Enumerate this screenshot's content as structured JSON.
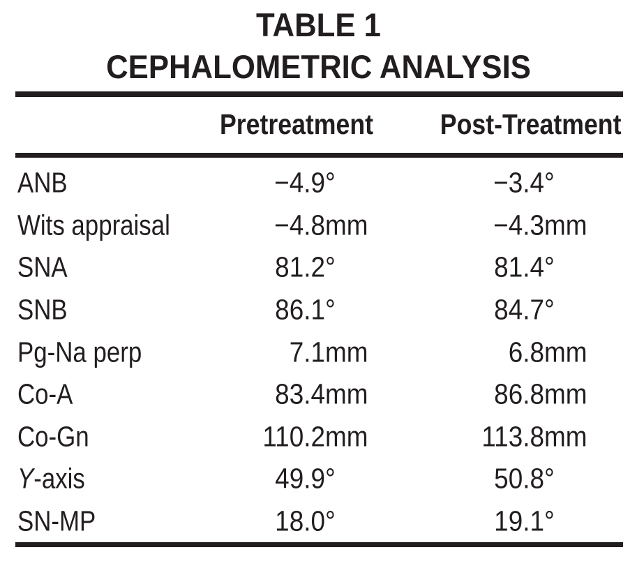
{
  "title": {
    "line1": "TABLE 1",
    "line2": "CEPHALOMETRIC ANALYSIS"
  },
  "columns": {
    "pretreatment": "Pretreatment",
    "posttreatment": "Post-Treatment"
  },
  "rows": [
    {
      "label_italic": "",
      "label": "ANB",
      "pre_num": "−4.9",
      "pre_unit": "°",
      "post_num": "−3.4",
      "post_unit": "°"
    },
    {
      "label_italic": "",
      "label": "Wits appraisal",
      "pre_num": "−4.8",
      "pre_unit": "mm",
      "post_num": "−4.3",
      "post_unit": "mm"
    },
    {
      "label_italic": "",
      "label": "SNA",
      "pre_num": "81.2",
      "pre_unit": "°",
      "post_num": "81.4",
      "post_unit": "°"
    },
    {
      "label_italic": "",
      "label": "SNB",
      "pre_num": "86.1",
      "pre_unit": "°",
      "post_num": "84.7",
      "post_unit": "°"
    },
    {
      "label_italic": "",
      "label": "Pg-Na perp",
      "pre_num": "7.1",
      "pre_unit": "mm",
      "post_num": "6.8",
      "post_unit": "mm"
    },
    {
      "label_italic": "",
      "label": "Co-A",
      "pre_num": "83.4",
      "pre_unit": "mm",
      "post_num": "86.8",
      "post_unit": "mm"
    },
    {
      "label_italic": "",
      "label": "Co-Gn",
      "pre_num": "110.2",
      "pre_unit": "mm",
      "post_num": "113.8",
      "post_unit": "mm"
    },
    {
      "label_italic": "Y",
      "label": "-axis",
      "pre_num": "49.9",
      "pre_unit": "°",
      "post_num": "50.8",
      "post_unit": "°"
    },
    {
      "label_italic": "",
      "label": "SN-MP",
      "pre_num": "18.0",
      "pre_unit": "°",
      "post_num": "19.1",
      "post_unit": "°"
    }
  ],
  "chart_data": {
    "type": "table",
    "title": "TABLE 1",
    "subtitle": "CEPHALOMETRIC ANALYSIS",
    "columns": [
      "",
      "Pretreatment",
      "Post-Treatment"
    ],
    "rows": [
      [
        "ANB",
        "−4.9°",
        "−3.4°"
      ],
      [
        "Wits appraisal",
        "−4.8mm",
        "−4.3mm"
      ],
      [
        "SNA",
        "81.2°",
        "81.4°"
      ],
      [
        "SNB",
        "86.1°",
        "84.7°"
      ],
      [
        "Pg-Na perp",
        "7.1mm",
        "6.8mm"
      ],
      [
        "Co-A",
        "83.4mm",
        "86.8mm"
      ],
      [
        "Co-Gn",
        "110.2mm",
        "113.8mm"
      ],
      [
        "Y-axis",
        "49.9°",
        "50.8°"
      ],
      [
        "SN-MP",
        "18.0°",
        "19.1°"
      ]
    ]
  },
  "colors": {
    "text": "#221e1f",
    "rule": "#221e1f",
    "background": "#ffffff"
  }
}
